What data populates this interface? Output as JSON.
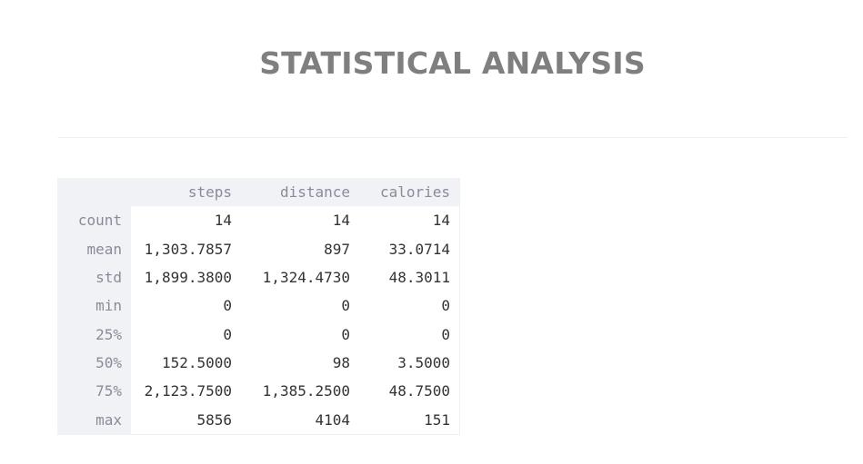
{
  "page": {
    "title": "STATISTICAL ANALYSIS"
  },
  "table": {
    "columns": [
      "steps",
      "distance",
      "calories"
    ],
    "rows": [
      {
        "label": "count",
        "steps": "14",
        "distance": "14",
        "calories": "14"
      },
      {
        "label": "mean",
        "steps": "1,303.7857",
        "distance": "897",
        "calories": "33.0714"
      },
      {
        "label": "std",
        "steps": "1,899.3800",
        "distance": "1,324.4730",
        "calories": "48.3011"
      },
      {
        "label": "min",
        "steps": "0",
        "distance": "0",
        "calories": "0"
      },
      {
        "label": "25%",
        "steps": "0",
        "distance": "0",
        "calories": "0"
      },
      {
        "label": "50%",
        "steps": "152.5000",
        "distance": "98",
        "calories": "3.5000"
      },
      {
        "label": "75%",
        "steps": "2,123.7500",
        "distance": "1,385.2500",
        "calories": "48.7500"
      },
      {
        "label": "max",
        "steps": "5856",
        "distance": "4104",
        "calories": "151"
      }
    ]
  }
}
